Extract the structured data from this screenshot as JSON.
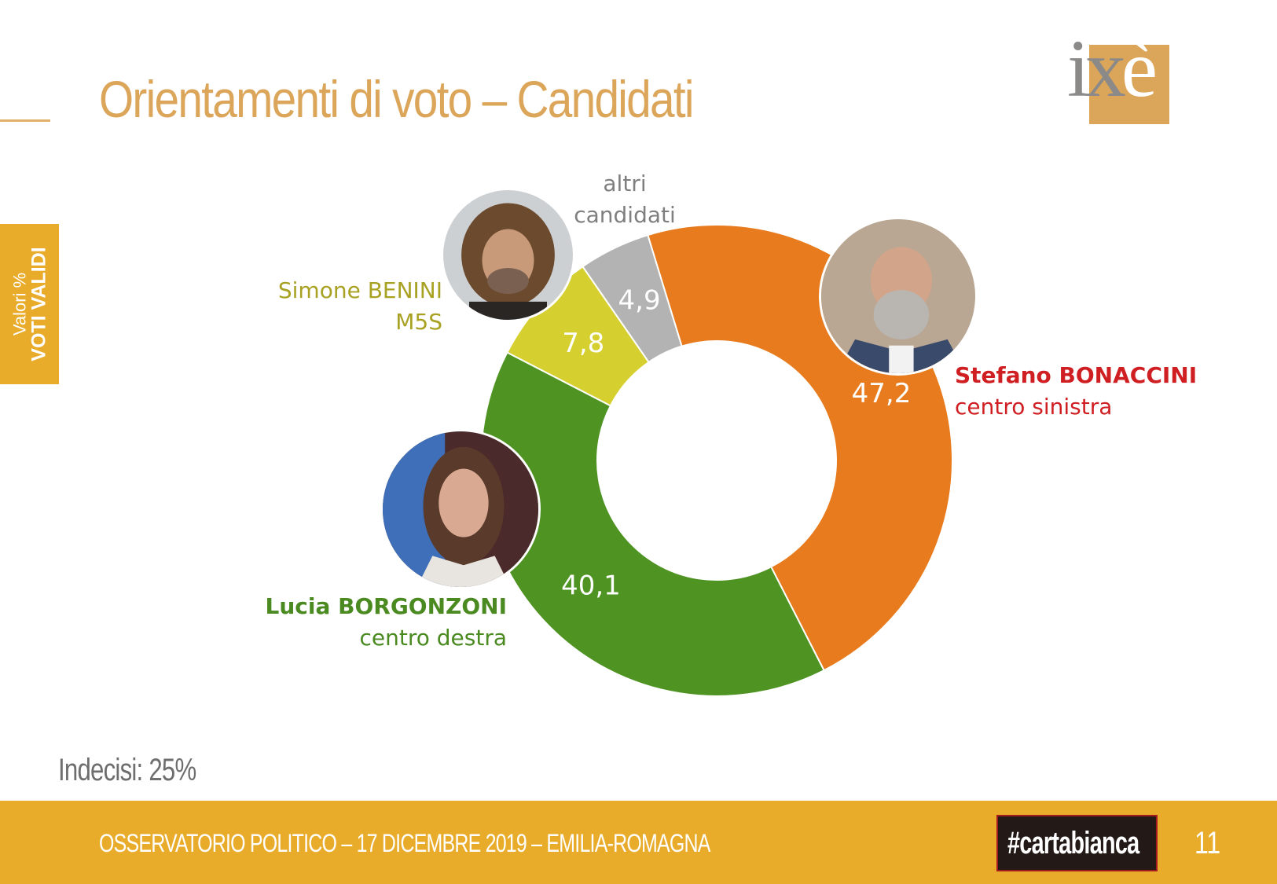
{
  "header": {
    "title": "Orientamenti di voto – Candidati",
    "logo": {
      "text_main": "ix",
      "text_accent": "è",
      "box_color": "#dca65a",
      "text_color": "#8c8a88"
    }
  },
  "side_tab": {
    "line1": "Valori %",
    "line2": "VOTI VALIDI",
    "color": "#e8ab2a"
  },
  "chart_data": {
    "type": "donut",
    "categories": [
      "Stefano BONACCINI",
      "Lucia BORGONZONI",
      "Simone BENINI",
      "altri candidati"
    ],
    "values": [
      47.2,
      40.1,
      7.8,
      4.9
    ],
    "value_labels": [
      "47,2",
      "40,1",
      "7,8",
      "4,9"
    ],
    "colors": [
      "#e87b1e",
      "#4f9423",
      "#d5d02f",
      "#b3b3b3"
    ]
  },
  "candidates": [
    {
      "name": "Stefano BONACCINI",
      "coalition": "centro sinistra",
      "color": "#cf1f22"
    },
    {
      "name": "Lucia BORGONZONI",
      "coalition": "centro destra",
      "color": "#4a8a21"
    },
    {
      "name": "Simone BENINI",
      "coalition": "M5S",
      "color": "#a8a122"
    },
    {
      "name_line1": "altri",
      "name_line2": "candidati",
      "color": "#7f7f7f"
    }
  ],
  "indecisi": "Indecisi: 25%",
  "footer": {
    "text": "OSSERVATORIO POLITICO – 17 DICEMBRE 2019 – EMILIA-ROMAGNA",
    "badge": "#cartabianca",
    "page_number": "11"
  }
}
